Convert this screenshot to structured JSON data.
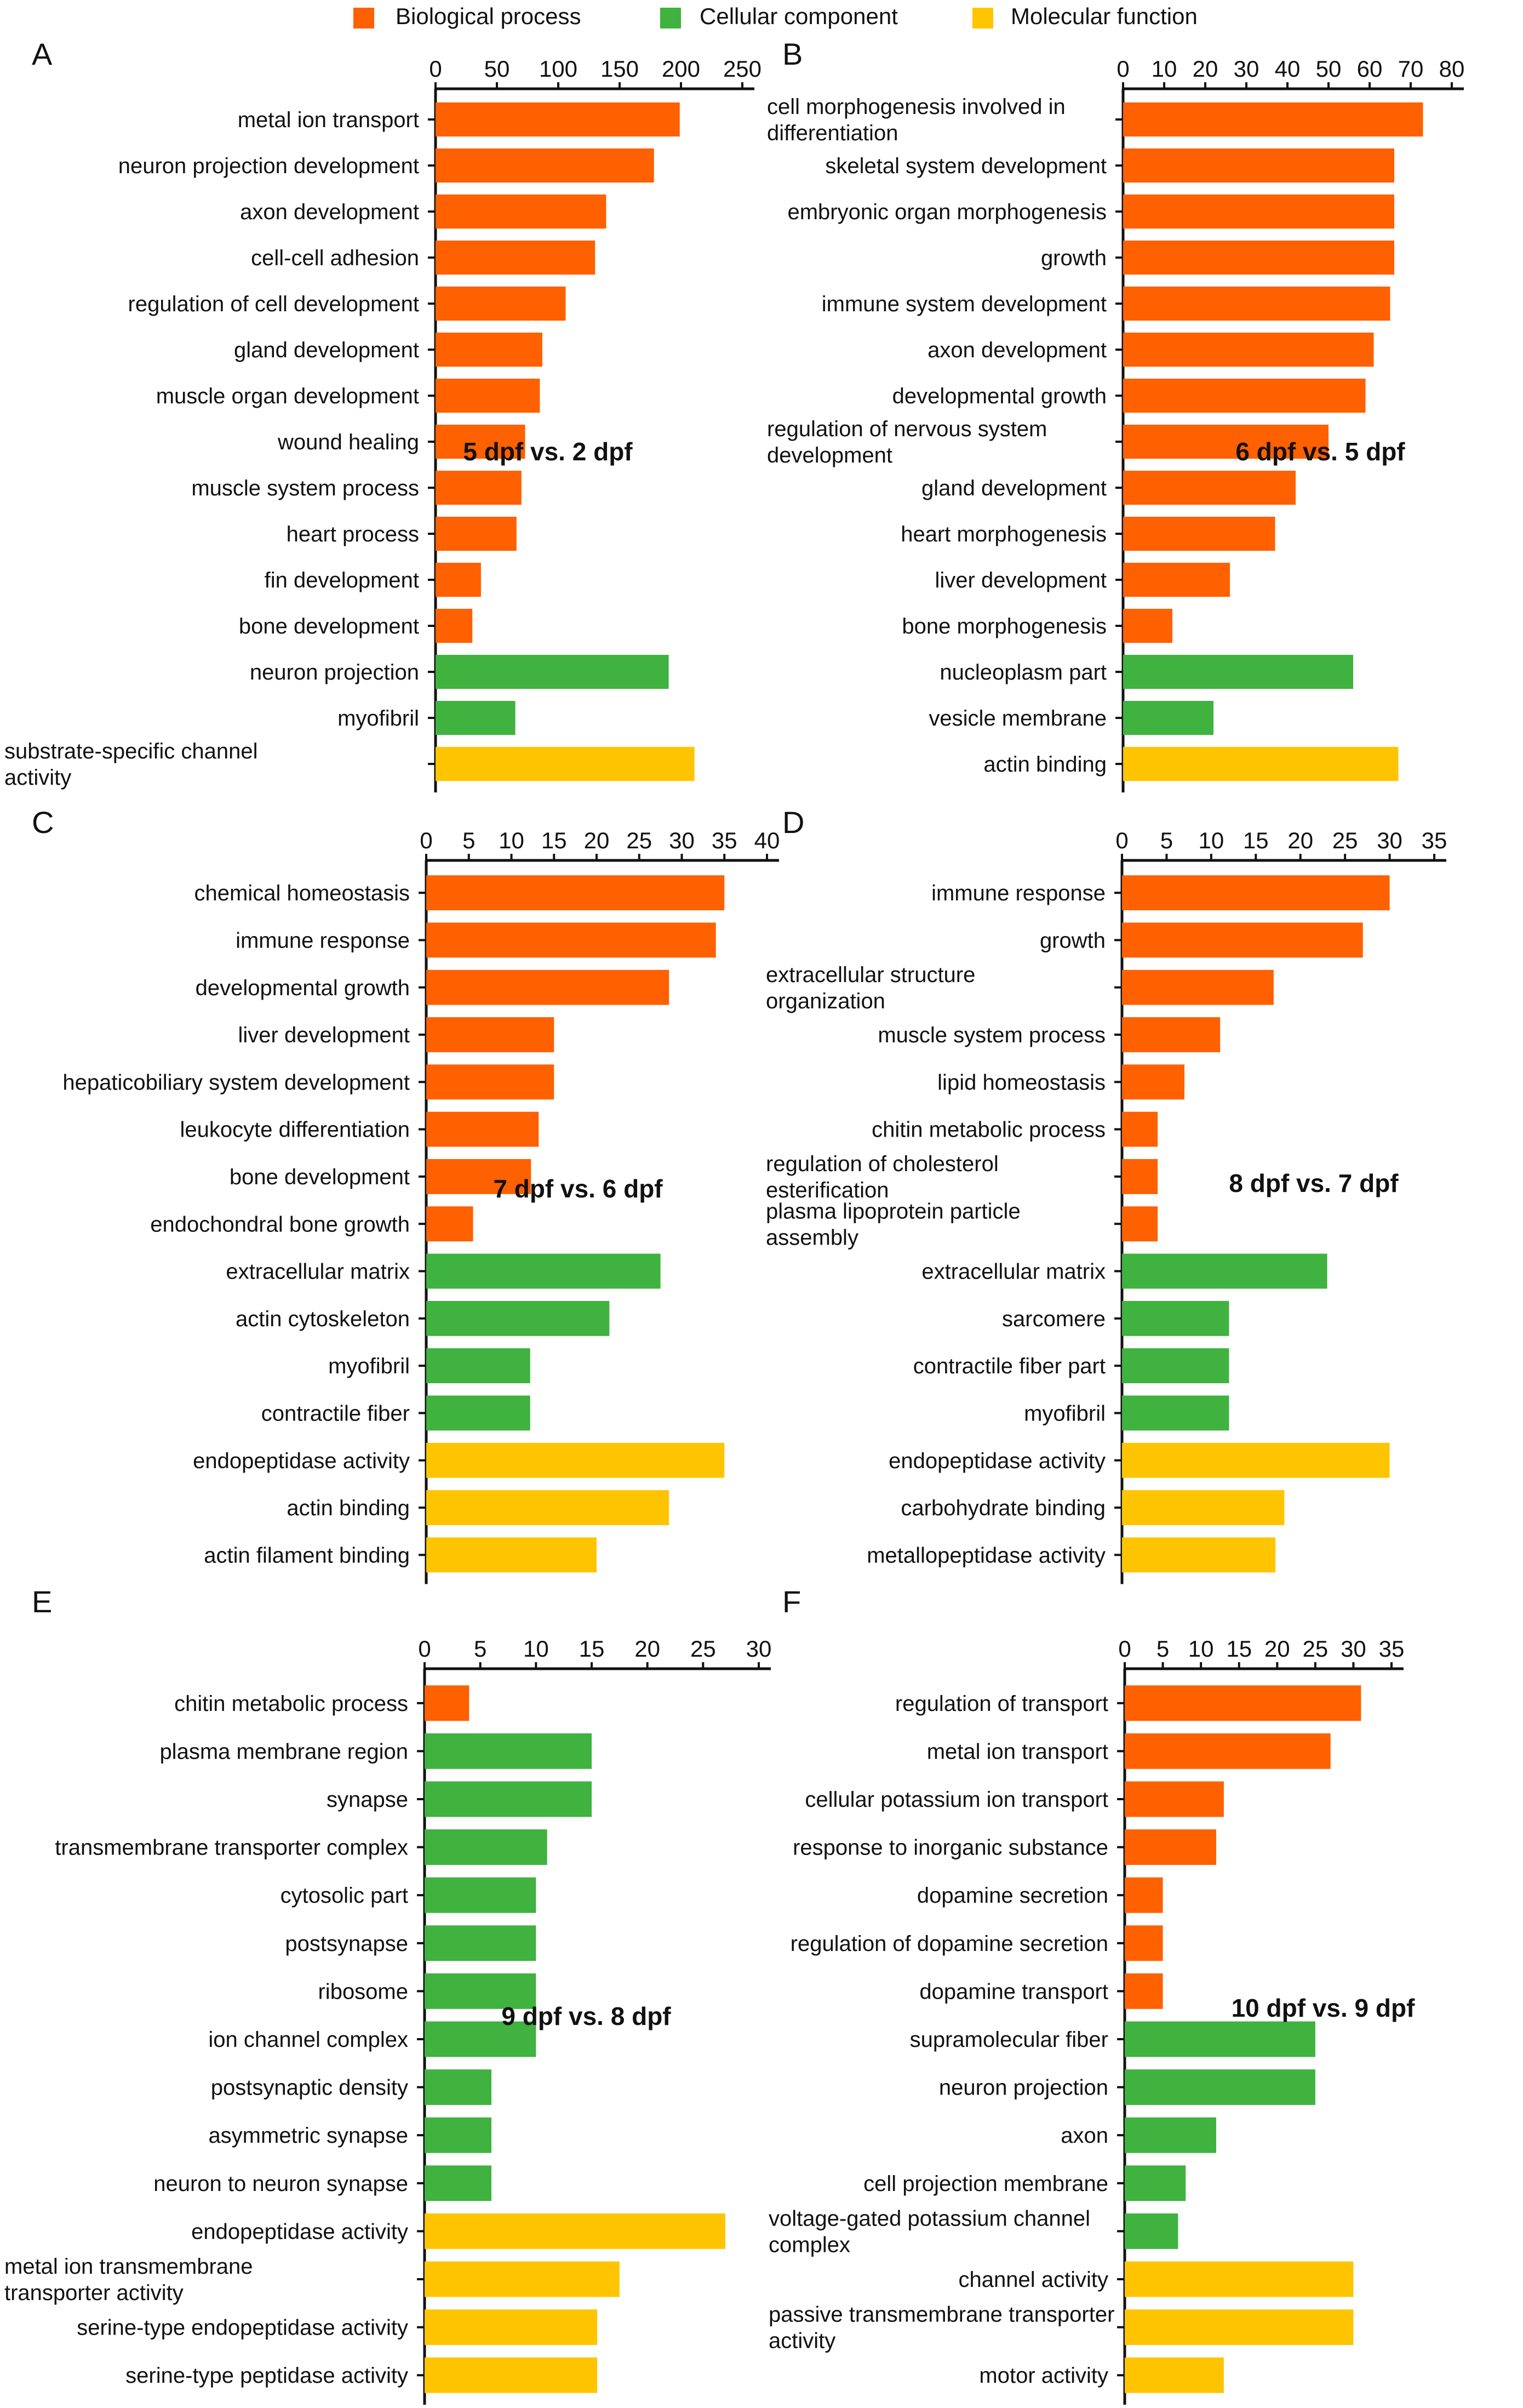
{
  "legend": [
    {
      "label": "Biological process",
      "color": "#ff6000"
    },
    {
      "label": "Cellular component",
      "color": "#3fb23f"
    },
    {
      "label": "Molecular function",
      "color": "#ffc400"
    }
  ],
  "chart_data": [
    {
      "panel": "A",
      "type": "bar",
      "orientation": "horizontal",
      "title": "5 dpf vs. 2 dpf",
      "xlim": [
        0,
        250
      ],
      "ticks": [
        0,
        50,
        100,
        150,
        200,
        250
      ],
      "categories": [
        "metal ion transport",
        "neuron projection development",
        "axon development",
        "cell-cell adhesion",
        "regulation of cell development",
        "gland development",
        "muscle organ development",
        "wound healing",
        "muscle system process",
        "heart process",
        "fin development",
        "bone development",
        "neuron projection",
        "myofibril",
        "substrate-specific channel activity"
      ],
      "values": [
        199,
        178,
        139,
        130,
        106,
        87,
        85,
        73,
        70,
        66,
        37,
        30,
        190,
        65,
        211
      ],
      "groups": [
        "Biological process",
        "Biological process",
        "Biological process",
        "Biological process",
        "Biological process",
        "Biological process",
        "Biological process",
        "Biological process",
        "Biological process",
        "Biological process",
        "Biological process",
        "Biological process",
        "Cellular component",
        "Cellular component",
        "Molecular function"
      ]
    },
    {
      "panel": "B",
      "type": "bar",
      "orientation": "horizontal",
      "title": "6 dpf vs. 5 dpf",
      "xlim": [
        0,
        80
      ],
      "ticks": [
        0,
        10,
        20,
        30,
        40,
        50,
        60,
        70,
        80
      ],
      "categories": [
        "cell morphogenesis involved in differentiation",
        "skeletal system development",
        "embryonic organ morphogenesis",
        "growth",
        "immune system development",
        "axon development",
        "developmental growth",
        "regulation of nervous system development",
        "gland development",
        "heart morphogenesis",
        "liver development",
        "bone morphogenesis",
        "nucleoplasm part",
        "vesicle membrane",
        "actin binding"
      ],
      "values": [
        73,
        66,
        66,
        66,
        65,
        61,
        59,
        50,
        42,
        37,
        26,
        12,
        56,
        22,
        67
      ],
      "groups": [
        "Biological process",
        "Biological process",
        "Biological process",
        "Biological process",
        "Biological process",
        "Biological process",
        "Biological process",
        "Biological process",
        "Biological process",
        "Biological process",
        "Biological process",
        "Biological process",
        "Cellular component",
        "Cellular component",
        "Molecular function"
      ]
    },
    {
      "panel": "C",
      "type": "bar",
      "orientation": "horizontal",
      "title": "7 dpf vs. 6 dpf",
      "xlim": [
        0,
        40
      ],
      "ticks": [
        0,
        5,
        10,
        15,
        20,
        25,
        30,
        35,
        40
      ],
      "categories": [
        "chemical homeostasis",
        "immune response",
        "developmental growth",
        "liver development",
        "hepaticobiliary system development",
        "leukocyte differentiation",
        "bone development",
        "endochondral bone growth",
        "extracellular matrix",
        "actin cytoskeleton",
        "myofibril",
        "contractile fiber",
        "endopeptidase activity",
        "actin binding",
        "actin filament binding"
      ],
      "values": [
        35,
        34,
        28.5,
        15,
        15,
        13.2,
        12.3,
        5.5,
        27.5,
        21.5,
        12.2,
        12.2,
        35,
        28.5,
        20
      ],
      "groups": [
        "Biological process",
        "Biological process",
        "Biological process",
        "Biological process",
        "Biological process",
        "Biological process",
        "Biological process",
        "Biological process",
        "Cellular component",
        "Cellular component",
        "Cellular component",
        "Cellular component",
        "Molecular function",
        "Molecular function",
        "Molecular function"
      ]
    },
    {
      "panel": "D",
      "type": "bar",
      "orientation": "horizontal",
      "title": "8 dpf vs. 7 dpf",
      "xlim": [
        0,
        35
      ],
      "ticks": [
        0,
        5,
        10,
        15,
        20,
        25,
        30,
        35
      ],
      "categories": [
        "immune response",
        "growth",
        "extracellular structure organization",
        "muscle system process",
        "lipid homeostasis",
        "chitin metabolic process",
        "regulation of cholesterol esterification",
        "plasma lipoprotein particle assembly",
        "extracellular matrix",
        "sarcomere",
        "contractile fiber part",
        "myofibril",
        "endopeptidase activity",
        "carbohydrate binding",
        "metallopeptidase activity"
      ],
      "values": [
        30,
        27,
        17,
        11,
        7,
        4,
        4,
        4,
        23,
        12,
        12,
        12,
        30,
        18.2,
        17.2
      ],
      "groups": [
        "Biological process",
        "Biological process",
        "Biological process",
        "Biological process",
        "Biological process",
        "Biological process",
        "Biological process",
        "Biological process",
        "Cellular component",
        "Cellular component",
        "Cellular component",
        "Cellular component",
        "Molecular function",
        "Molecular function",
        "Molecular function"
      ]
    },
    {
      "panel": "E",
      "type": "bar",
      "orientation": "horizontal",
      "title": "9 dpf vs. 8 dpf",
      "xlim": [
        0,
        30
      ],
      "ticks": [
        0,
        5,
        10,
        15,
        20,
        25,
        30
      ],
      "categories": [
        "chitin metabolic process",
        "plasma membrane region",
        "synapse",
        "transmembrane transporter complex",
        "cytosolic part",
        "postsynapse",
        "ribosome",
        "ion channel complex",
        "postsynaptic density",
        "asymmetric synapse",
        "neuron to neuron synapse",
        "endopeptidase activity",
        "metal ion transmembrane transporter activity",
        "serine-type endopeptidase activity",
        "serine-type peptidase activity"
      ],
      "values": [
        4,
        15,
        15,
        11,
        10,
        10,
        10,
        10,
        6,
        6,
        6,
        27,
        17.5,
        15.5,
        15.5
      ],
      "groups": [
        "Biological process",
        "Cellular component",
        "Cellular component",
        "Cellular component",
        "Cellular component",
        "Cellular component",
        "Cellular component",
        "Cellular component",
        "Cellular component",
        "Cellular component",
        "Cellular component",
        "Molecular function",
        "Molecular function",
        "Molecular function",
        "Molecular function"
      ]
    },
    {
      "panel": "F",
      "type": "bar",
      "orientation": "horizontal",
      "title": "10 dpf vs. 9 dpf",
      "xlim": [
        0,
        35
      ],
      "ticks": [
        0,
        5,
        10,
        15,
        20,
        25,
        30,
        35
      ],
      "categories": [
        "regulation of transport",
        "metal ion transport",
        "cellular potassium ion transport",
        "response to inorganic substance",
        "dopamine secretion",
        "regulation of dopamine secretion",
        "dopamine transport",
        "supramolecular fiber",
        "neuron projection",
        "axon",
        "cell projection membrane",
        "voltage-gated potassium channel complex",
        "channel activity",
        "passive transmembrane transporter activity",
        "motor activity"
      ],
      "values": [
        31,
        27,
        13,
        12,
        5,
        5,
        5,
        25,
        25,
        12,
        8,
        7,
        30,
        30,
        13
      ],
      "groups": [
        "Biological process",
        "Biological process",
        "Biological process",
        "Biological process",
        "Biological process",
        "Biological process",
        "Biological process",
        "Cellular component",
        "Cellular component",
        "Cellular component",
        "Cellular component",
        "Cellular component",
        "Molecular function",
        "Molecular function",
        "Molecular function"
      ]
    }
  ]
}
